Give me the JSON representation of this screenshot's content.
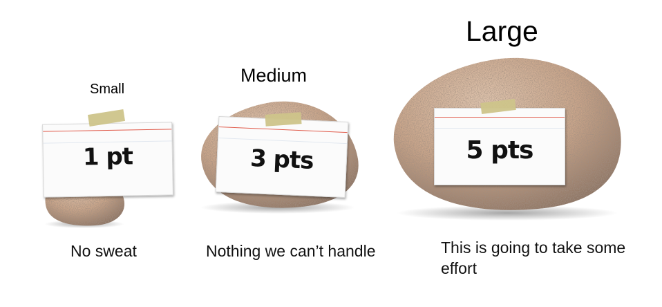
{
  "rocks": [
    {
      "size_label": "Small",
      "points": "1 pt",
      "caption": "No sweat"
    },
    {
      "size_label": "Medium",
      "points": "3 pts",
      "caption": "Nothing we can’t handle"
    },
    {
      "size_label": "Large",
      "points": "5 pts",
      "caption": "This is going to take some effort"
    }
  ],
  "colors": {
    "rock_base": "#c9a58a",
    "rock_shadow": "#8e7564",
    "tape": "#cdc48a",
    "card_red_line": "#e05a4a"
  },
  "icons": [
    "rock-image",
    "masking-tape"
  ]
}
